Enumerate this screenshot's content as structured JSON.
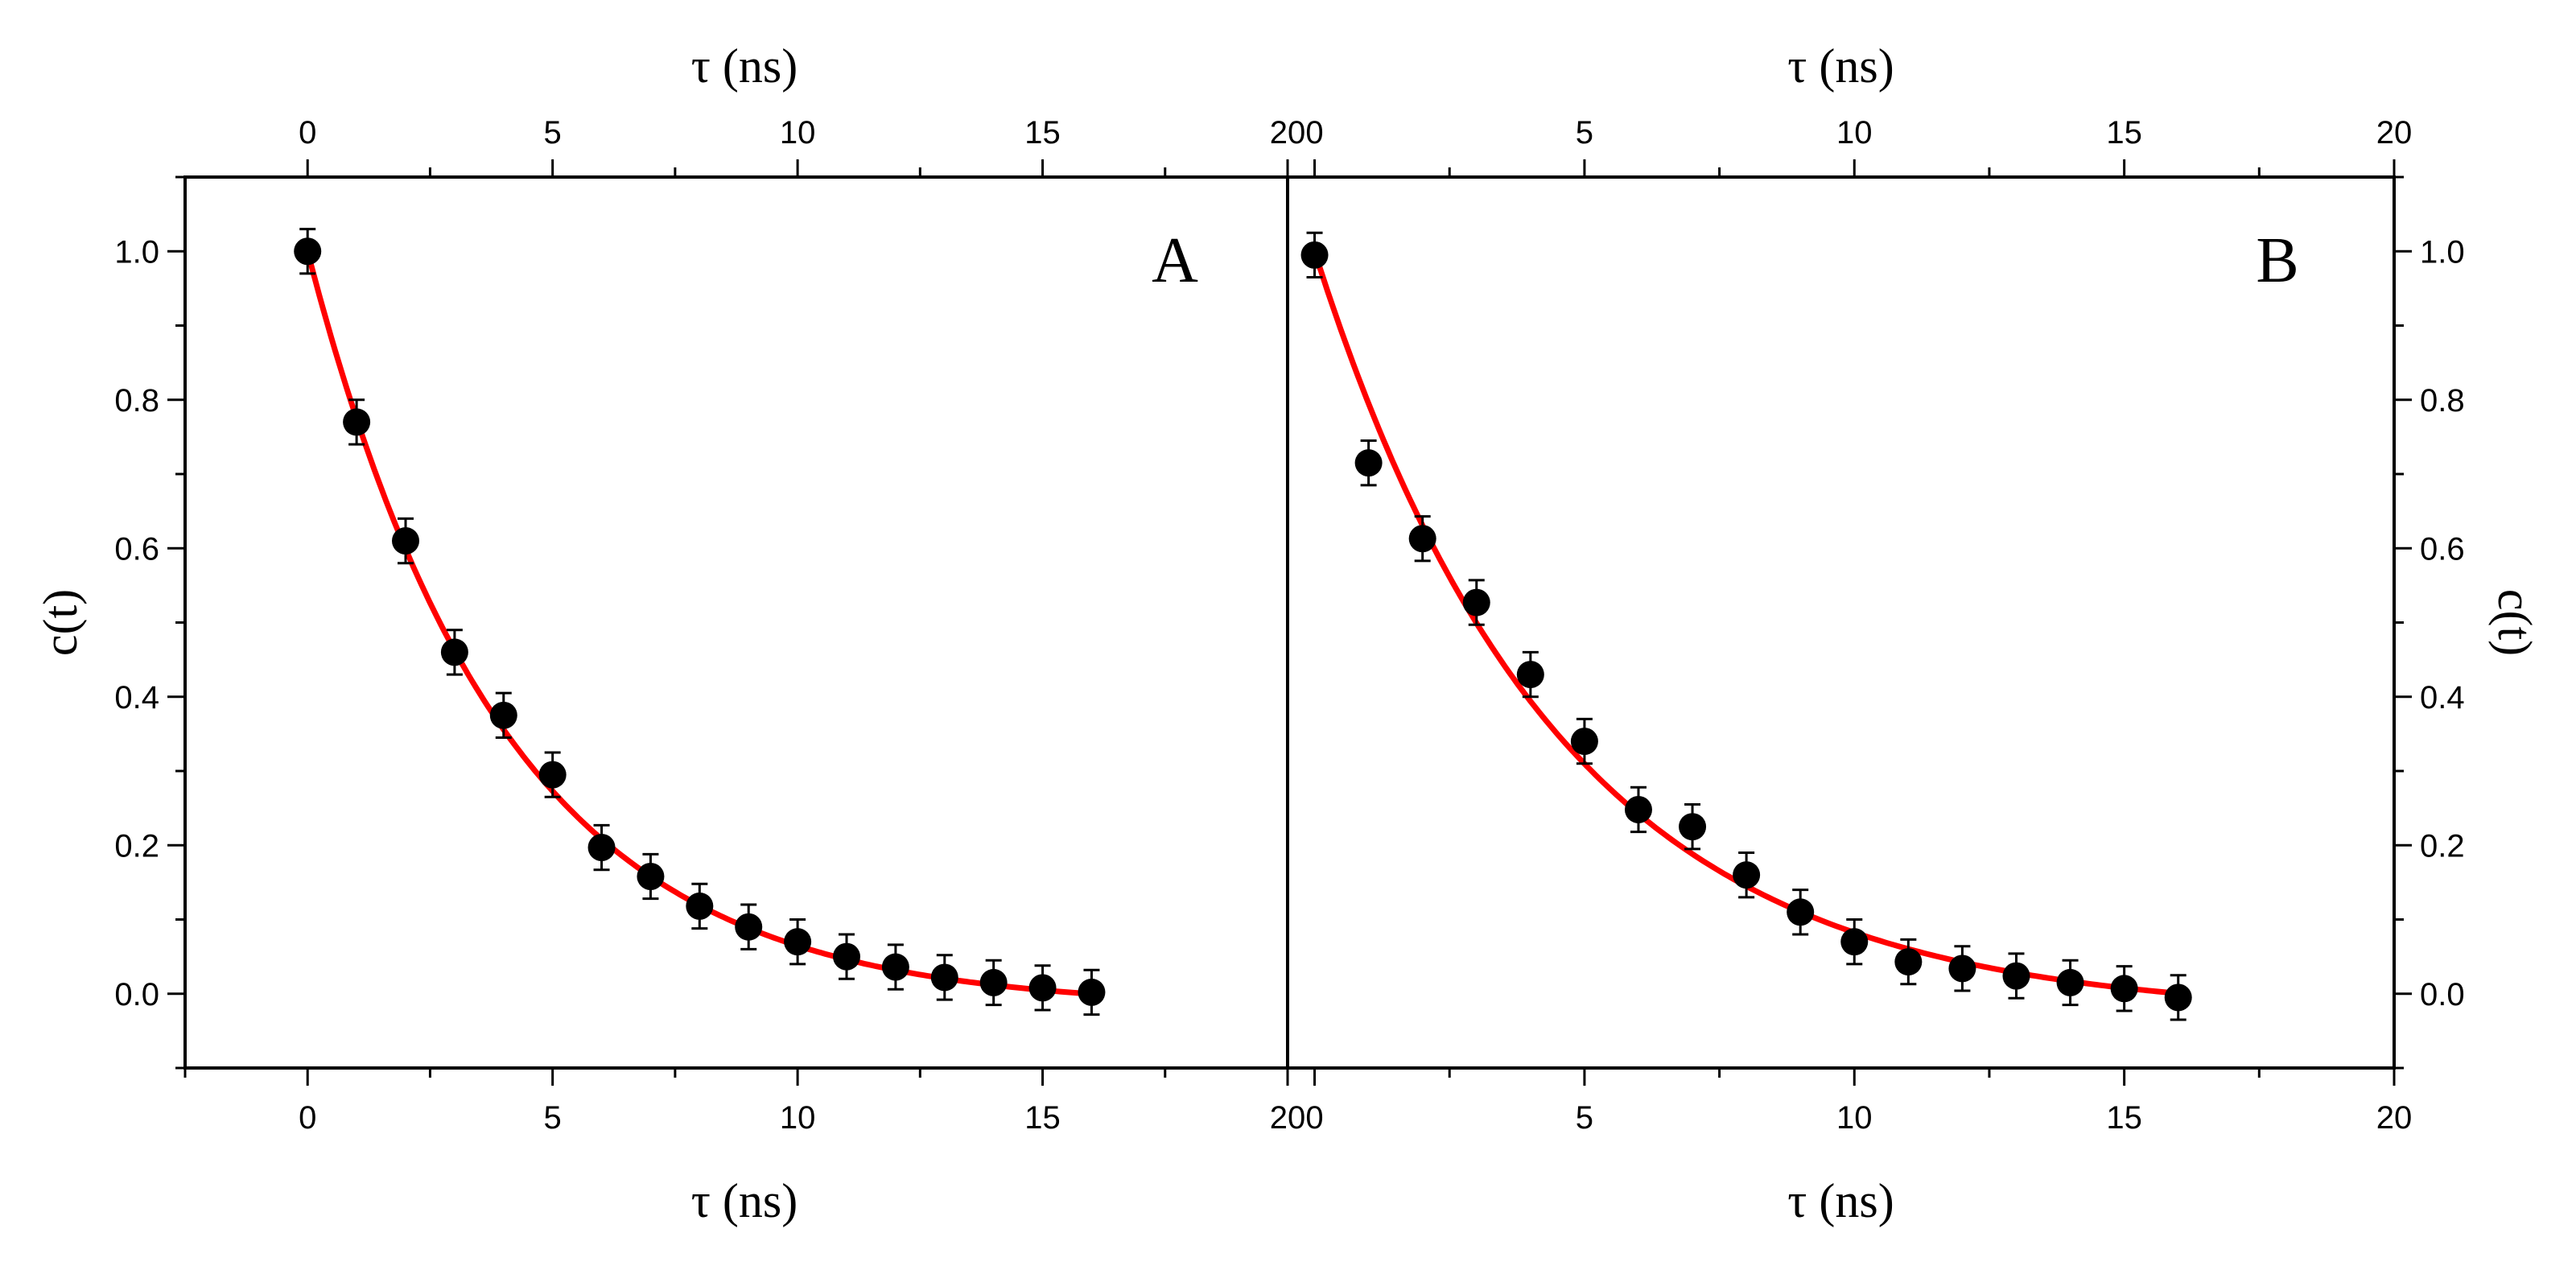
{
  "chart_data": [
    {
      "type": "scatter",
      "panel_label": "A",
      "xlabel_bottom": "τ (ns)",
      "xlabel_top": "τ (ns)",
      "ylabel": "c(t)",
      "ylabel_side": "left",
      "xlim": [
        -2.5,
        20
      ],
      "ylim": [
        -0.1,
        1.1
      ],
      "xticks": [
        "0",
        "5",
        "10",
        "15",
        "20"
      ],
      "yticks": [
        "0.0",
        "0.2",
        "0.4",
        "0.6",
        "0.8",
        "1.0"
      ],
      "marker_color": "#000000",
      "fit_color": "#ff0000",
      "series": [
        {
          "x": [
            0,
            1,
            2,
            3,
            4,
            5,
            6,
            7,
            8,
            9,
            10,
            11,
            12,
            13,
            14,
            15,
            16
          ],
          "y": [
            1.0,
            0.77,
            0.61,
            0.46,
            0.375,
            0.295,
            0.197,
            0.158,
            0.118,
            0.09,
            0.07,
            0.05,
            0.036,
            0.022,
            0.015,
            0.008,
            0.002
          ],
          "yerr": [
            0.03,
            0.03,
            0.03,
            0.03,
            0.03,
            0.03,
            0.03,
            0.03,
            0.03,
            0.03,
            0.03,
            0.03,
            0.03,
            0.03,
            0.03,
            0.03,
            0.03
          ]
        }
      ],
      "fit": {
        "model": "exponential decay",
        "x_range": [
          0,
          16
        ],
        "tau_ns": 4.0,
        "offset": -0.019
      }
    },
    {
      "type": "scatter",
      "panel_label": "B",
      "xlabel_bottom": "τ (ns)",
      "xlabel_top": "τ (ns)",
      "ylabel": "c(t)",
      "ylabel_side": "right",
      "xlim": [
        -0.5,
        20
      ],
      "ylim": [
        -0.1,
        1.1
      ],
      "xticks": [
        "0",
        "5",
        "10",
        "15",
        "20"
      ],
      "yticks": [
        "0.0",
        "0.2",
        "0.4",
        "0.6",
        "0.8",
        "1.0"
      ],
      "marker_color": "#000000",
      "fit_color": "#ff0000",
      "series": [
        {
          "x": [
            0,
            1,
            2,
            3,
            4,
            5,
            6,
            7,
            8,
            9,
            10,
            11,
            12,
            13,
            14,
            15,
            16
          ],
          "y": [
            0.995,
            0.715,
            0.613,
            0.527,
            0.43,
            0.34,
            0.248,
            0.225,
            0.16,
            0.11,
            0.07,
            0.043,
            0.034,
            0.024,
            0.015,
            0.007,
            -0.005
          ],
          "yerr": [
            0.03,
            0.03,
            0.03,
            0.03,
            0.03,
            0.03,
            0.03,
            0.03,
            0.03,
            0.03,
            0.03,
            0.03,
            0.03,
            0.03,
            0.03,
            0.03,
            0.03
          ]
        }
      ],
      "fit": {
        "model": "exponential decay",
        "x_range": [
          0,
          16
        ],
        "tau_ns": 4.5,
        "offset": -0.029
      }
    }
  ]
}
